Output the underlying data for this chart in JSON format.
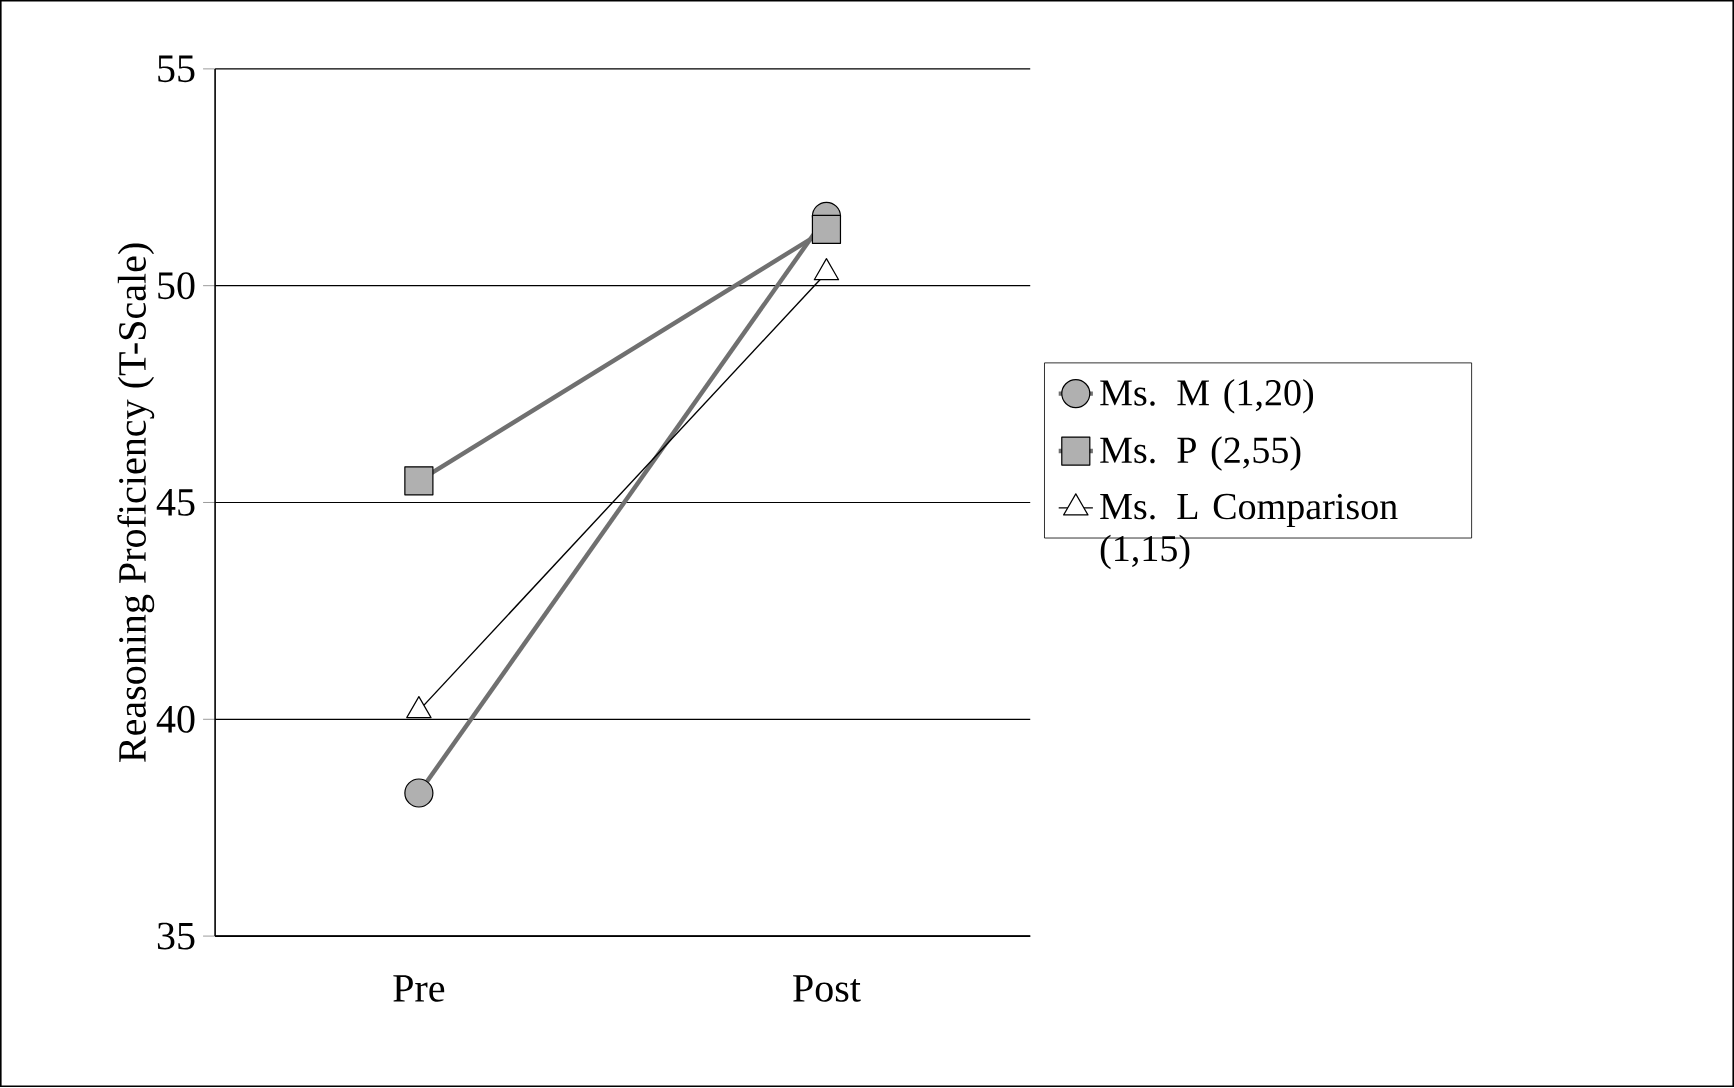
{
  "chart_data": {
    "type": "line",
    "ylabel": "Reasoning Proficiency (T-Scale)",
    "categories": [
      "Pre",
      "Post"
    ],
    "series": [
      {
        "name": "Ms. M (1,20)",
        "color": "#707070",
        "marker": "circle",
        "values": [
          38.3,
          51.6
        ]
      },
      {
        "name": "Ms. P (2,55)",
        "color": "#707070",
        "marker": "square",
        "values": [
          45.5,
          51.3
        ]
      },
      {
        "name": "Ms. L Comparison (1,15)",
        "color": "#000000",
        "marker": "triangle",
        "values": [
          40.2,
          50.3
        ]
      }
    ],
    "ylim": [
      35,
      55
    ],
    "yticks": [
      35,
      40,
      45,
      50,
      55
    ],
    "grid": "y",
    "legend": "right"
  }
}
